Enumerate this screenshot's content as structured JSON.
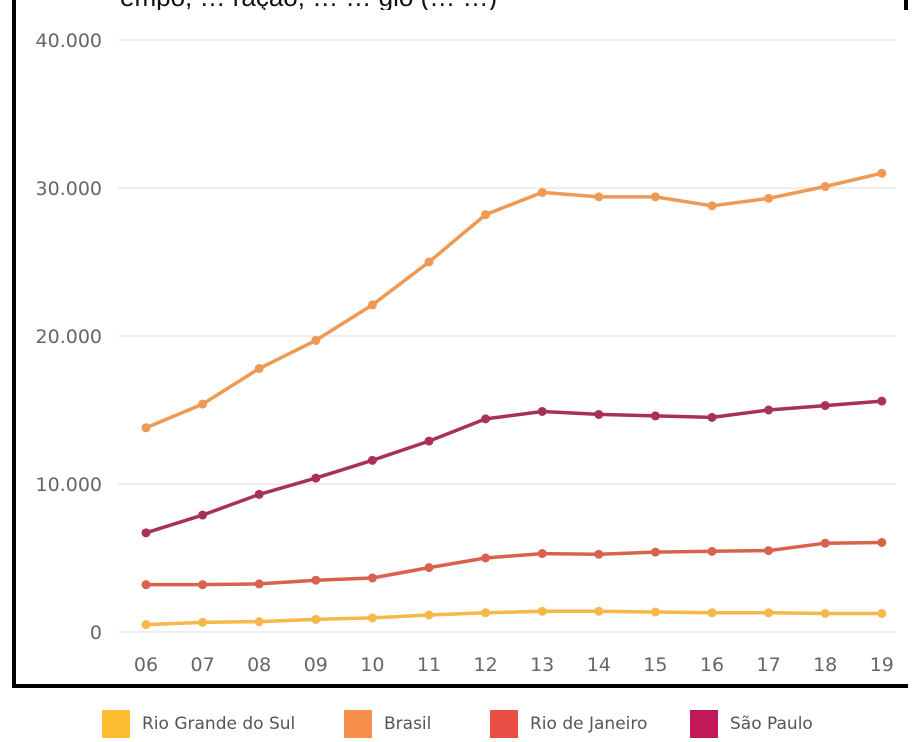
{
  "title_fragment": "empo, … ração, … … gio (… …)",
  "chart_data": {
    "type": "line",
    "title": "",
    "xlabel": "",
    "ylabel": "",
    "categories": [
      "06",
      "07",
      "08",
      "09",
      "10",
      "11",
      "12",
      "13",
      "14",
      "15",
      "16",
      "17",
      "18",
      "19"
    ],
    "y_ticks": [
      "0",
      "10.000",
      "20.000",
      "30.000",
      "40.000"
    ],
    "ylim": [
      0,
      40000
    ],
    "grid": true,
    "legend_position": "bottom",
    "series": [
      {
        "name": "Rio Grande do Sul",
        "color": "#f7b84b",
        "values": [
          500,
          650,
          700,
          850,
          950,
          1150,
          1300,
          1400,
          1400,
          1350,
          1300,
          1300,
          1250,
          1250
        ]
      },
      {
        "name": "Brasil",
        "color": "#ee9a55",
        "values": [
          13800,
          15400,
          17800,
          19700,
          22100,
          25000,
          28200,
          29700,
          29400,
          29400,
          28800,
          29300,
          30100,
          31000
        ]
      },
      {
        "name": "Rio de Janeiro",
        "color": "#d9624f",
        "values": [
          3200,
          3200,
          3250,
          3500,
          3650,
          4350,
          5000,
          5300,
          5250,
          5400,
          5450,
          5500,
          6000,
          6050
        ]
      },
      {
        "name": "São Paulo",
        "color": "#a8315a",
        "values": [
          6700,
          7900,
          9300,
          10400,
          11600,
          12900,
          14400,
          14900,
          14700,
          14600,
          14500,
          15000,
          15300,
          15600
        ]
      }
    ]
  },
  "legend": [
    {
      "label": "Rio Grande do Sul",
      "color": "#fbbd2f"
    },
    {
      "label": "Brasil",
      "color": "#f58f49"
    },
    {
      "label": "Rio de Janeiro",
      "color": "#ea4f45"
    },
    {
      "label": "São Paulo",
      "color": "#c2195a"
    }
  ]
}
